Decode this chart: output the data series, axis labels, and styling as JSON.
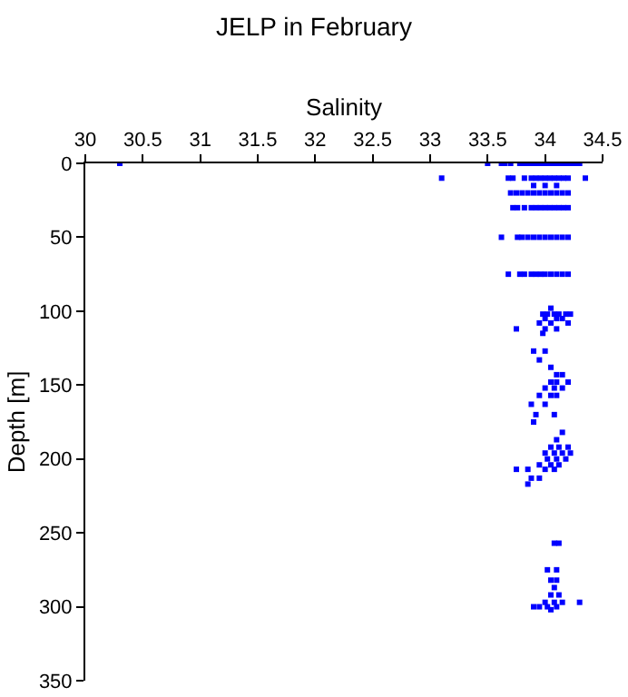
{
  "chart_data": {
    "type": "scatter",
    "title": "JELP in February",
    "xlabel": "Salinity",
    "ylabel": "Depth [m]",
    "x": [
      30.3,
      33.5,
      33.62,
      33.65,
      33.7,
      33.78,
      33.82,
      33.86,
      33.9,
      33.94,
      33.98,
      34.02,
      34.06,
      34.1,
      34.14,
      34.18,
      34.22,
      34.26,
      34.3,
      33.1,
      33.68,
      33.72,
      33.82,
      33.88,
      33.92,
      33.96,
      34.0,
      34.04,
      34.08,
      34.12,
      34.16,
      34.2,
      34.35,
      33.9,
      34.0,
      34.1,
      33.7,
      33.75,
      33.8,
      33.85,
      33.9,
      33.95,
      34.0,
      34.05,
      34.1,
      34.15,
      34.2,
      33.72,
      33.76,
      33.82,
      33.88,
      33.92,
      33.96,
      34.0,
      34.04,
      34.08,
      34.12,
      34.16,
      34.2,
      33.62,
      33.76,
      33.8,
      33.85,
      33.9,
      33.95,
      34.0,
      34.05,
      34.1,
      34.15,
      34.2,
      33.68,
      33.78,
      33.82,
      33.88,
      33.92,
      33.96,
      34.0,
      34.05,
      34.1,
      34.15,
      34.2,
      34.05,
      33.98,
      34.02,
      34.08,
      34.12,
      34.18,
      34.22,
      34.0,
      34.1,
      34.15,
      33.95,
      34.05,
      34.2,
      33.75,
      34.0,
      34.1,
      33.98,
      33.9,
      34.0,
      33.95,
      34.05,
      34.1,
      34.15,
      34.05,
      34.1,
      34.2,
      34.0,
      34.08,
      34.15,
      33.95,
      34.05,
      34.1,
      33.88,
      34.0,
      33.92,
      34.08,
      33.9,
      34.15,
      34.1,
      34.05,
      34.12,
      34.2,
      34.0,
      34.08,
      34.15,
      34.22,
      34.02,
      34.1,
      34.18,
      33.95,
      34.05,
      34.12,
      33.75,
      33.85,
      34.0,
      34.08,
      33.88,
      33.95,
      33.85,
      34.08,
      34.12,
      34.02,
      34.1,
      34.05,
      34.1,
      34.08,
      34.05,
      34.12,
      34.0,
      34.08,
      34.15,
      34.3,
      33.9,
      33.95,
      34.02,
      34.1,
      34.05
    ],
    "values": [
      0,
      0,
      0,
      0,
      0,
      0,
      0,
      0,
      0,
      0,
      0,
      0,
      0,
      0,
      0,
      0,
      0,
      0,
      0,
      10,
      10,
      10,
      10,
      10,
      10,
      10,
      10,
      10,
      10,
      10,
      10,
      10,
      10,
      15,
      15,
      15,
      20,
      20,
      20,
      20,
      20,
      20,
      20,
      20,
      20,
      20,
      20,
      30,
      30,
      30,
      30,
      30,
      30,
      30,
      30,
      30,
      30,
      30,
      30,
      50,
      50,
      50,
      50,
      50,
      50,
      50,
      50,
      50,
      50,
      50,
      75,
      75,
      75,
      75,
      75,
      75,
      75,
      75,
      75,
      75,
      75,
      98,
      102,
      102,
      102,
      102,
      102,
      102,
      105,
      105,
      105,
      108,
      108,
      108,
      112,
      112,
      112,
      115,
      127,
      127,
      133,
      138,
      143,
      143,
      148,
      148,
      148,
      152,
      152,
      152,
      157,
      157,
      157,
      163,
      163,
      170,
      170,
      175,
      182,
      187,
      192,
      192,
      192,
      196,
      196,
      196,
      196,
      200,
      200,
      200,
      204,
      204,
      204,
      207,
      207,
      207,
      207,
      213,
      213,
      217,
      257,
      257,
      275,
      275,
      282,
      282,
      287,
      292,
      292,
      297,
      297,
      297,
      297,
      300,
      300,
      300,
      300,
      302
    ],
    "color": "#0000ff",
    "marker": "square",
    "xlim": [
      30,
      34.5
    ],
    "xticks": [
      30,
      30.5,
      31,
      31.5,
      32,
      32.5,
      33,
      33.5,
      34,
      34.5
    ],
    "ylim": [
      350,
      0
    ],
    "yticks": [
      0,
      50,
      100,
      150,
      200,
      250,
      300,
      350
    ]
  }
}
